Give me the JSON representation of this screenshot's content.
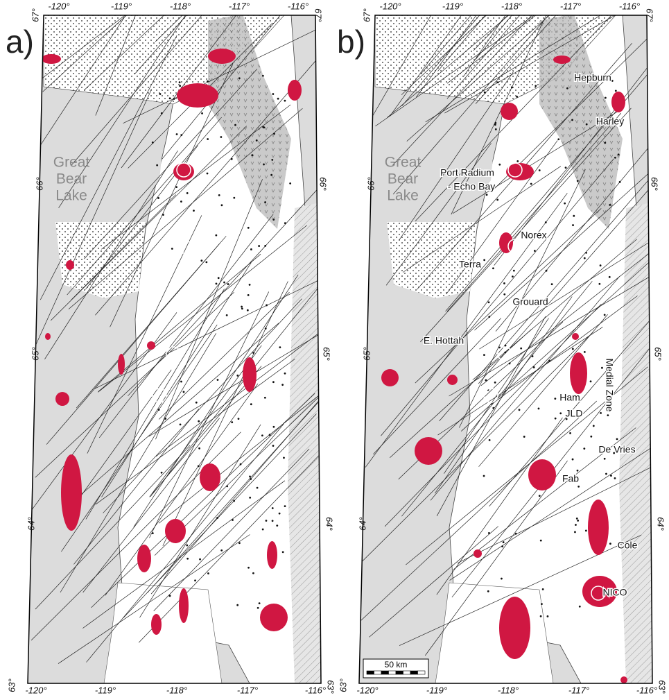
{
  "panels": [
    {
      "label": "a)",
      "lake_label": [
        "Great",
        "Bear",
        "Lake"
      ],
      "top_lon_labels": [
        "-120°",
        "-119°",
        "-118°",
        "-117°",
        "-116°"
      ],
      "bottom_lon_labels": [
        "-120°",
        "-119°",
        "-118°",
        "-117°",
        "-116°"
      ],
      "left_lat_labels": [
        "67°",
        "66°",
        "65°",
        "64°",
        "63°"
      ],
      "right_lat_labels": [
        "67°",
        "66°",
        "65°",
        "64°",
        "63°"
      ]
    },
    {
      "label": "b)",
      "lake_label": [
        "Great",
        "Bear",
        "Lake"
      ],
      "top_lon_labels": [
        "-120°",
        "-119°",
        "-118°",
        "-117°",
        "-116°"
      ],
      "bottom_lon_labels": [
        "-120°",
        "-119°",
        "-118°",
        "-117°",
        "-116°"
      ],
      "left_lat_labels": [
        "67°",
        "66°",
        "65°",
        "64°",
        "63°"
      ],
      "right_lat_labels": [
        "67°",
        "66°",
        "65°",
        "64°",
        "63°"
      ],
      "places": [
        "Hepburn",
        "Harley",
        "Port Radium",
        "- Echo Bay",
        "Norex",
        "Terra",
        "Grouard",
        "E. Hottah",
        "Ham",
        "JLD",
        "Medial Zone",
        "De Vries",
        "Fab",
        "Cole",
        "NICO"
      ],
      "scale_bar": "50 km"
    }
  ]
}
